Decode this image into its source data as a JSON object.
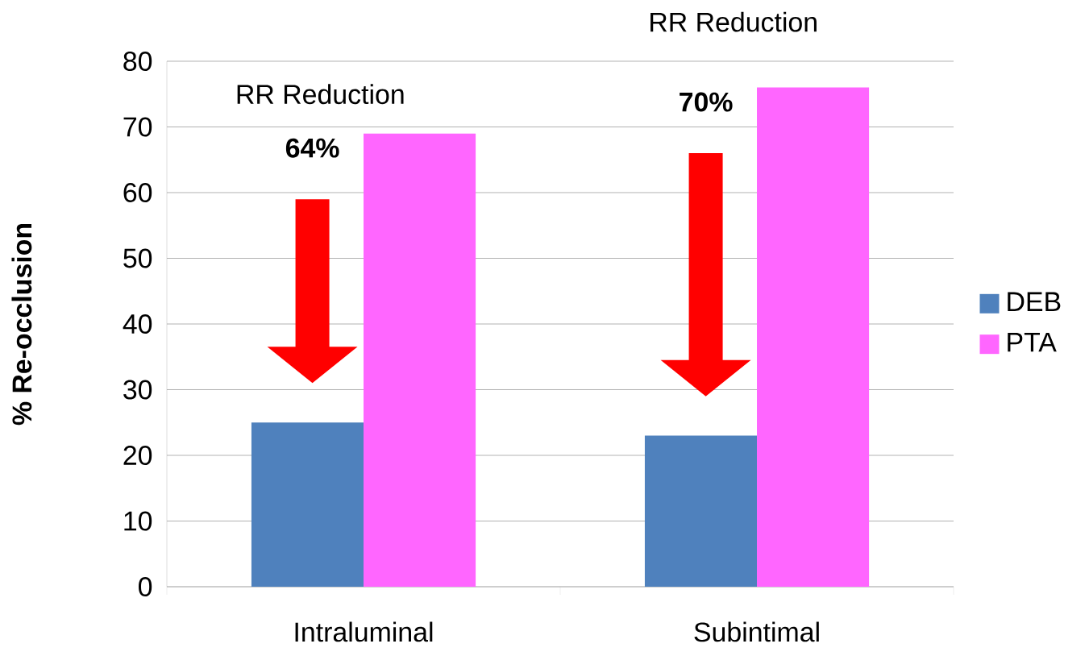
{
  "chart_data": {
    "type": "bar",
    "ylabel": "% Re-occlusion",
    "categories": [
      "Intraluminal",
      "Subintimal"
    ],
    "series": [
      {
        "name": "DEB",
        "color": "#4f81bd",
        "values": [
          25,
          23
        ]
      },
      {
        "name": "PTA",
        "color": "#ff66ff",
        "values": [
          69,
          76
        ]
      }
    ],
    "ylim": [
      0,
      80
    ],
    "yticks": [
      0,
      10,
      20,
      30,
      40,
      50,
      60,
      70,
      80
    ],
    "grid": "y",
    "legend": "right",
    "annotations": [
      "RR Reduction",
      "64%",
      "RR Reduction",
      "70%"
    ]
  }
}
